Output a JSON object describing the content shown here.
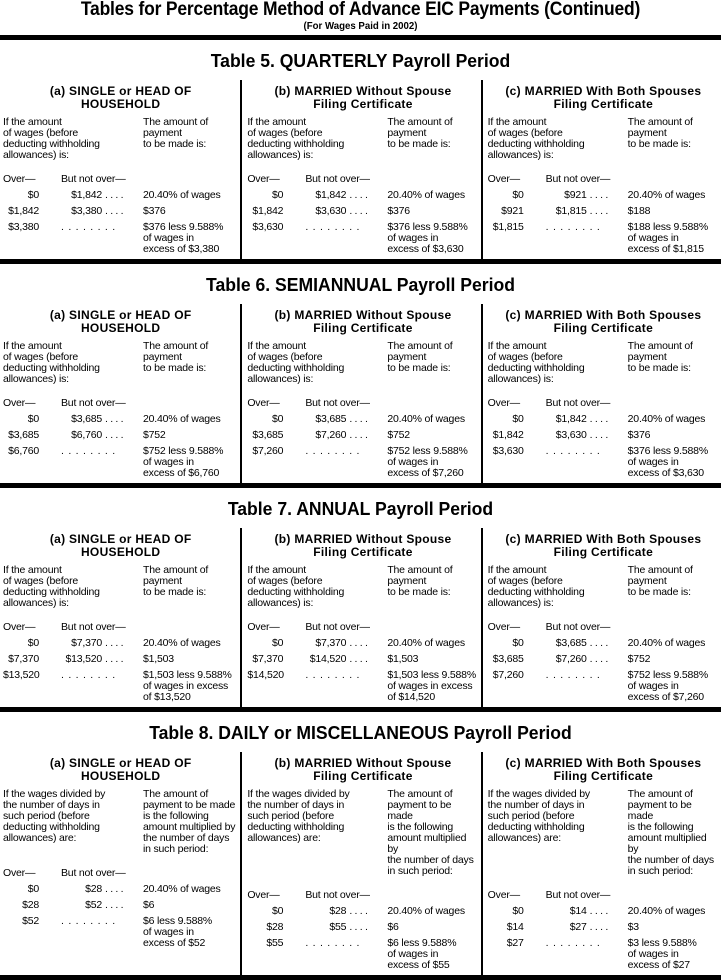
{
  "header": {
    "title": "Tables for Percentage Method of Advance EIC Payments (Continued)",
    "subtitle": "(For Wages Paid in 2002)"
  },
  "common": {
    "over_label": "Over—",
    "not_over_label": "But not over—",
    "intro_left": "If the amount\nof wages (before\ndeducting withholding\nallowances) is:",
    "intro_right": "The amount of\npayment\nto be made is:",
    "daily_intro_left": "If the wages divided by\nthe number of days in\nsuch period (before\ndeducting withholding\nallowances) are:",
    "daily_intro_right": "The amount of\npayment to be made\nis the following\namount multiplied by\nthe number of days\nin such period:",
    "dots_short": "....",
    "dots_long": "........",
    "col_heads": [
      [
        "(a) SINGLE or HEAD OF",
        "HOUSEHOLD"
      ],
      [
        "(b) MARRIED Without Spouse",
        "Filing Certificate"
      ],
      [
        "(c) MARRIED With Both Spouses",
        "Filing Certificate"
      ]
    ]
  },
  "tables": [
    {
      "title": "Table 5. QUARTERLY Payroll Period",
      "daily": false,
      "columns": [
        {
          "rows": [
            [
              "$0",
              "$1,842",
              "20.40% of wages"
            ],
            [
              "$1,842",
              "$3,380",
              "$376"
            ],
            [
              "$3,380",
              "",
              "$376 less 9.588%\nof wages in\nexcess of $3,380"
            ]
          ]
        },
        {
          "rows": [
            [
              "$0",
              "$1,842",
              "20.40% of wages"
            ],
            [
              "$1,842",
              "$3,630",
              "$376"
            ],
            [
              "$3,630",
              "",
              "$376 less 9.588%\nof wages in\nexcess of $3,630"
            ]
          ]
        },
        {
          "rows": [
            [
              "$0",
              "$921",
              "20.40% of wages"
            ],
            [
              "$921",
              "$1,815",
              "$188"
            ],
            [
              "$1,815",
              "",
              "$188 less 9.588%\nof wages in\nexcess of $1,815"
            ]
          ]
        }
      ]
    },
    {
      "title": "Table 6. SEMIANNUAL Payroll Period",
      "daily": false,
      "columns": [
        {
          "rows": [
            [
              "$0",
              "$3,685",
              "20.40% of wages"
            ],
            [
              "$3,685",
              "$6,760",
              "$752"
            ],
            [
              "$6,760",
              "",
              "$752 less 9.588%\nof wages in\nexcess of $6,760"
            ]
          ]
        },
        {
          "rows": [
            [
              "$0",
              "$3,685",
              "20.40% of wages"
            ],
            [
              "$3,685",
              "$7,260",
              "$752"
            ],
            [
              "$7,260",
              "",
              "$752 less 9.588%\nof wages in\nexcess of $7,260"
            ]
          ]
        },
        {
          "rows": [
            [
              "$0",
              "$1,842",
              "20.40% of wages"
            ],
            [
              "$1,842",
              "$3,630",
              "$376"
            ],
            [
              "$3,630",
              "",
              "$376 less 9.588%\nof wages in\nexcess of $3,630"
            ]
          ]
        }
      ]
    },
    {
      "title": "Table 7. ANNUAL Payroll Period",
      "daily": false,
      "columns": [
        {
          "rows": [
            [
              "$0",
              "$7,370",
              "20.40% of wages"
            ],
            [
              "$7,370",
              "$13,520",
              "$1,503"
            ],
            [
              "$13,520",
              "",
              "$1,503 less 9.588%\nof wages in excess\nof $13,520"
            ]
          ]
        },
        {
          "rows": [
            [
              "$0",
              "$7,370",
              "20.40% of wages"
            ],
            [
              "$7,370",
              "$14,520",
              "$1,503"
            ],
            [
              "$14,520",
              "",
              "$1,503 less 9.588%\nof wages in excess\nof $14,520"
            ]
          ]
        },
        {
          "rows": [
            [
              "$0",
              "$3,685",
              "20.40% of wages"
            ],
            [
              "$3,685",
              "$7,260",
              "$752"
            ],
            [
              "$7,260",
              "",
              "$752 less 9.588%\nof wages in\nexcess of $7,260"
            ]
          ]
        }
      ]
    },
    {
      "title": "Table 8. DAILY or MISCELLANEOUS Payroll Period",
      "daily": true,
      "columns": [
        {
          "rows": [
            [
              "$0",
              "$28",
              "20.40% of wages"
            ],
            [
              "$28",
              "$52",
              "$6"
            ],
            [
              "$52",
              "",
              "$6 less 9.588%\nof wages in\nexcess of $52"
            ]
          ]
        },
        {
          "rows": [
            [
              "$0",
              "$28",
              "20.40% of wages"
            ],
            [
              "$28",
              "$55",
              "$6"
            ],
            [
              "$55",
              "",
              "$6 less 9.588%\nof wages in\nexcess of $55"
            ]
          ]
        },
        {
          "rows": [
            [
              "$0",
              "$14",
              "20.40% of wages"
            ],
            [
              "$14",
              "$27",
              "$3"
            ],
            [
              "$27",
              "",
              "$3 less 9.588%\nof wages in\nexcess of $27"
            ]
          ]
        }
      ]
    }
  ]
}
